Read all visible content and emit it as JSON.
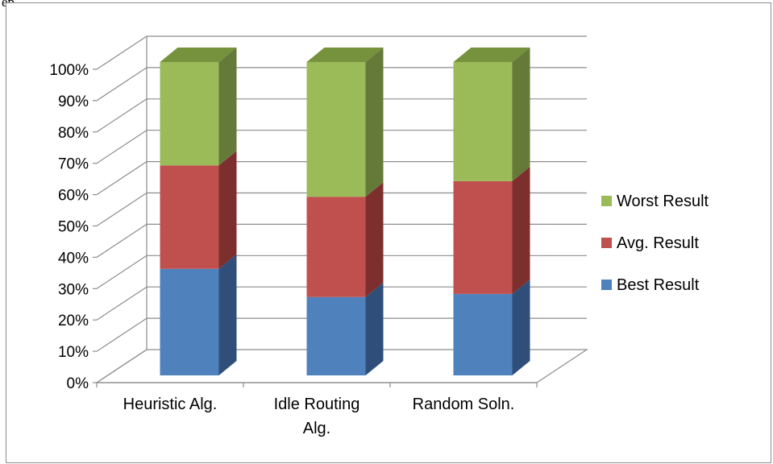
{
  "page": {
    "caption": "ep"
  },
  "chart_data": {
    "type": "bar",
    "stacked": true,
    "percent_stacked": true,
    "three_d": true,
    "title": "",
    "xlabel": "",
    "ylabel": "",
    "categories": [
      "Heuristic Alg.",
      "Idle Routing Alg.",
      "Random Soln."
    ],
    "category_lines": [
      [
        "Heuristic Alg."
      ],
      [
        "Idle Routing",
        "Alg."
      ],
      [
        "Random Soln."
      ]
    ],
    "series": [
      {
        "name": "Best Result",
        "values": [
          34,
          25,
          26
        ],
        "color": "#4f81bd",
        "side_color": "#2f4f7a",
        "top_color": "#385d8a"
      },
      {
        "name": "Avg. Result",
        "values": [
          33,
          32,
          36
        ],
        "color": "#c0504d",
        "side_color": "#7d2f2d",
        "top_color": "#943a38"
      },
      {
        "name": "Worst Result",
        "values": [
          33,
          43,
          38
        ],
        "color": "#9bbb59",
        "side_color": "#657a39",
        "top_color": "#76923c"
      }
    ],
    "y_ticks": [
      "0%",
      "10%",
      "20%",
      "30%",
      "40%",
      "50%",
      "60%",
      "70%",
      "80%",
      "90%",
      "100%"
    ],
    "ylim": [
      0,
      100
    ],
    "grid": true,
    "legend_position": "right",
    "legend_order": [
      "Worst Result",
      "Avg. Result",
      "Best Result"
    ]
  }
}
